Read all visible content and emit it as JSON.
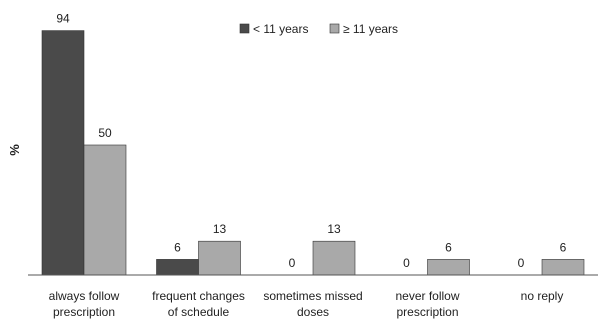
{
  "chart_data": {
    "type": "bar",
    "ylabel": "%",
    "xlabel": "",
    "title": "",
    "ylim": [
      0,
      100
    ],
    "categories": [
      [
        "always follow",
        "prescription"
      ],
      [
        "frequent changes",
        "of schedule"
      ],
      [
        "sometimes missed",
        "doses"
      ],
      [
        "never follow",
        "prescription"
      ],
      [
        "no reply"
      ]
    ],
    "series": [
      {
        "name": "< 11 years",
        "color": "#4a4a4a",
        "values": [
          94,
          6,
          0,
          0,
          0
        ]
      },
      {
        "name": "≥ 11 years",
        "color": "#a9a9a9",
        "values": [
          50,
          13,
          13,
          6,
          6
        ]
      }
    ],
    "legend_position": "top-right",
    "grid": false
  }
}
